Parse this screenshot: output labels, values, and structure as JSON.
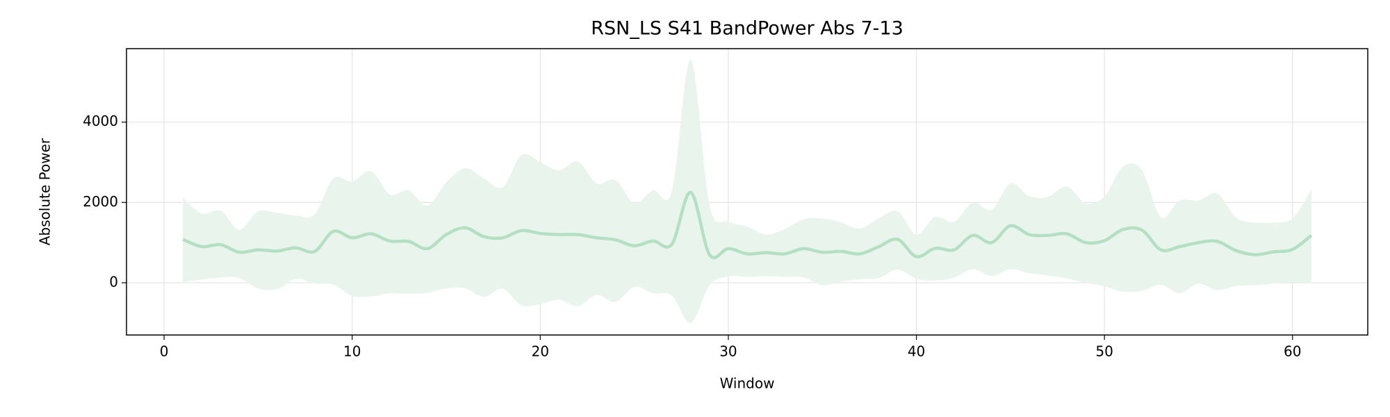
{
  "chart_data": {
    "type": "line",
    "title": "RSN_LS S41 BandPower Abs 7-13",
    "x_label": "Window",
    "y_label": "Absolute Power",
    "x": [
      1,
      2,
      3,
      4,
      5,
      6,
      7,
      8,
      9,
      10,
      11,
      12,
      13,
      14,
      15,
      16,
      17,
      18,
      19,
      20,
      21,
      22,
      23,
      24,
      25,
      26,
      27,
      28,
      29,
      30,
      31,
      32,
      33,
      34,
      35,
      36,
      37,
      38,
      39,
      40,
      41,
      42,
      43,
      44,
      45,
      46,
      47,
      48,
      49,
      50,
      51,
      52,
      53,
      54,
      55,
      56,
      57,
      58,
      59,
      60,
      61
    ],
    "values": [
      1080,
      900,
      950,
      760,
      820,
      790,
      870,
      780,
      1280,
      1120,
      1220,
      1040,
      1030,
      850,
      1200,
      1370,
      1150,
      1120,
      1300,
      1230,
      1200,
      1200,
      1120,
      1070,
      920,
      1040,
      960,
      2250,
      700,
      850,
      720,
      750,
      720,
      850,
      760,
      780,
      720,
      900,
      1080,
      650,
      860,
      820,
      1180,
      1000,
      1420,
      1200,
      1180,
      1220,
      1000,
      1050,
      1330,
      1310,
      820,
      900,
      1000,
      1030,
      800,
      700,
      770,
      830,
      1180
    ],
    "upper": [
      2120,
      1720,
      1800,
      1320,
      1780,
      1740,
      1680,
      1700,
      2600,
      2520,
      2780,
      2200,
      2300,
      1920,
      2500,
      2850,
      2600,
      2380,
      3180,
      3000,
      2800,
      3020,
      2470,
      2560,
      1980,
      2300,
      2280,
      5550,
      1920,
      1520,
      1400,
      1200,
      1340,
      1580,
      1600,
      1500,
      1350,
      1600,
      1780,
      1200,
      1640,
      1520,
      2000,
      1820,
      2480,
      2160,
      2140,
      2400,
      1980,
      2150,
      2900,
      2800,
      1630,
      2050,
      2050,
      2220,
      1620,
      1500,
      1500,
      1600,
      2320
    ],
    "lower": [
      20,
      80,
      130,
      120,
      -140,
      -160,
      100,
      -20,
      -40,
      -330,
      -340,
      -260,
      -270,
      -250,
      -140,
      -140,
      -350,
      -150,
      -560,
      -530,
      -420,
      -580,
      -300,
      -480,
      -100,
      -260,
      -320,
      -1000,
      -60,
      160,
      150,
      160,
      150,
      130,
      -60,
      30,
      90,
      120,
      330,
      100,
      60,
      130,
      340,
      170,
      340,
      240,
      180,
      110,
      0,
      -90,
      -220,
      -200,
      -50,
      -260,
      -20,
      -180,
      -80,
      -60,
      -20,
      20,
      -10
    ],
    "color": "#b3dfc3",
    "band_color": "#e8f4ec",
    "xlim": [
      -2,
      64
    ],
    "ylim": [
      -1300,
      5830
    ],
    "xticks": [
      0,
      10,
      20,
      30,
      40,
      50,
      60
    ],
    "yticks": [
      0,
      2000,
      4000
    ],
    "grid": true
  }
}
